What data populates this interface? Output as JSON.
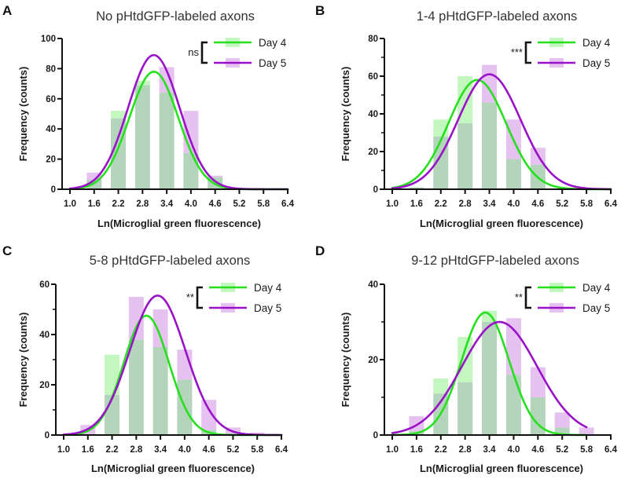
{
  "figure": {
    "x_categories": [
      "1.0",
      "1.6",
      "2.2",
      "2.8",
      "3.4",
      "4.0",
      "4.6",
      "5.2",
      "5.8",
      "6.4"
    ],
    "colors": {
      "day4_line": "#25e01c",
      "day5_line": "#9a12c8",
      "day4_bar": "#c4f6c0",
      "day5_bar": "#e6c2f0",
      "overlap_bar": "#b4d4bc",
      "axis": "#111111"
    }
  },
  "chart_data": [
    {
      "type": "bar",
      "panel": "A",
      "title": "No pHtdGFP-labeled axons",
      "xlabel": "Ln(Microglial green fluorescence)",
      "ylabel": "Frequency (counts)",
      "xlim": [
        1.0,
        6.4
      ],
      "ylim": [
        0,
        100
      ],
      "yticks": [
        0,
        20,
        40,
        60,
        80,
        100
      ],
      "minor_yticks": [],
      "xticks": [
        1.0,
        1.6,
        2.2,
        2.8,
        3.4,
        4.0,
        4.6,
        5.2,
        5.8,
        6.4
      ],
      "categories": [
        1.6,
        2.2,
        2.8,
        3.4,
        4.0,
        4.6
      ],
      "series": [
        {
          "name": "Day 4",
          "values": [
            6,
            52,
            72,
            64,
            24,
            8
          ],
          "fit": {
            "type": "gaussian",
            "peak": 78,
            "mean": 3.08,
            "sd": 0.61,
            "x_range": [
              1.0,
              6.4
            ]
          }
        },
        {
          "name": "Day 5",
          "values": [
            11,
            47,
            69,
            81,
            52,
            9
          ],
          "fit": {
            "type": "gaussian",
            "peak": 89,
            "mean": 3.08,
            "sd": 0.64,
            "x_range": [
              1.0,
              6.4
            ]
          }
        }
      ],
      "significance": "ns",
      "legend": [
        "Day 4",
        "Day 5"
      ],
      "legend_position": "top-right",
      "grid": false
    },
    {
      "type": "bar",
      "panel": "B",
      "title": "1-4 pHtdGFP-labeled axons",
      "xlabel": "Ln(Microglial green fluorescence)",
      "ylabel": "Frequency (counts)",
      "xlim": [
        1.0,
        6.4
      ],
      "ylim": [
        0,
        80
      ],
      "yticks": [
        0,
        20,
        40,
        60,
        80
      ],
      "minor_yticks": [
        10,
        30,
        50,
        70
      ],
      "xticks": [
        1.0,
        1.6,
        2.2,
        2.8,
        3.4,
        4.0,
        4.6,
        5.2,
        5.8,
        6.4
      ],
      "categories": [
        1.6,
        2.2,
        2.8,
        3.4,
        4.0,
        4.6
      ],
      "series": [
        {
          "name": "Day 4",
          "values": [
            1,
            37,
            60,
            46,
            16,
            13
          ],
          "fit": {
            "type": "gaussian",
            "peak": 58,
            "mean": 3.1,
            "sd": 0.71,
            "x_range": [
              1.0,
              6.4
            ]
          }
        },
        {
          "name": "Day 5",
          "values": [
            1,
            28,
            35,
            66,
            37,
            22
          ],
          "fit": {
            "type": "gaussian",
            "peak": 61,
            "mean": 3.4,
            "sd": 0.77,
            "x_range": [
              1.0,
              6.4
            ]
          }
        }
      ],
      "significance": "***",
      "legend": [
        "Day 4",
        "Day 5"
      ],
      "legend_position": "top-right",
      "grid": false
    },
    {
      "type": "bar",
      "panel": "C",
      "title": "5-8 pHtdGFP-labeled axons",
      "xlabel": "Ln(Microglial green fluorescence)",
      "ylabel": "Frequency (counts)",
      "xlim": [
        1.0,
        6.4
      ],
      "ylim": [
        0,
        60
      ],
      "yticks": [
        0,
        20,
        40,
        60
      ],
      "minor_yticks": [
        10,
        30,
        50
      ],
      "xticks": [
        1.0,
        1.6,
        2.2,
        2.8,
        3.4,
        4.0,
        4.6,
        5.2,
        5.8,
        6.4
      ],
      "categories": [
        1.6,
        2.2,
        2.8,
        3.4,
        4.0,
        4.6,
        5.2,
        5.8
      ],
      "series": [
        {
          "name": "Day 4",
          "values": [
            0,
            32,
            38,
            35,
            22,
            2,
            0,
            0
          ],
          "fit": {
            "type": "gaussian",
            "peak": 47.5,
            "mean": 3.05,
            "sd": 0.56,
            "x_range": [
              1.0,
              6.4
            ]
          }
        },
        {
          "name": "Day 5",
          "values": [
            4,
            16,
            55,
            50,
            34,
            14,
            3,
            1
          ],
          "fit": {
            "type": "gaussian",
            "peak": 55.5,
            "mean": 3.33,
            "sd": 0.69,
            "x_range": [
              1.0,
              6.4
            ]
          }
        }
      ],
      "significance": "**",
      "legend": [
        "Day 4",
        "Day 5"
      ],
      "legend_position": "top-right",
      "grid": false
    },
    {
      "type": "bar",
      "panel": "D",
      "title": "9-12 pHtdGFP-labeled axons",
      "xlabel": "Ln(Microglial green fluorescence)",
      "ylabel": "Frequency (counts)",
      "xlim": [
        1.0,
        6.4
      ],
      "ylim": [
        0,
        40
      ],
      "yticks": [
        0,
        20,
        40
      ],
      "minor_yticks": [
        10,
        30
      ],
      "xticks": [
        1.0,
        1.6,
        2.2,
        2.8,
        3.4,
        4.0,
        4.6,
        5.2,
        5.8,
        6.4
      ],
      "categories": [
        1.6,
        2.2,
        2.8,
        3.4,
        4.0,
        4.6,
        5.2,
        5.8
      ],
      "series": [
        {
          "name": "Day 4",
          "values": [
            1,
            15,
            26,
            33,
            16,
            10,
            2,
            0
          ],
          "fit": {
            "type": "gaussian",
            "peak": 32.5,
            "mean": 3.3,
            "sd": 0.59,
            "x_range": [
              1.0,
              5.8
            ]
          }
        },
        {
          "name": "Day 5",
          "values": [
            5,
            11,
            14,
            30,
            31,
            18,
            6,
            2
          ],
          "fit": {
            "type": "gaussian",
            "peak": 30,
            "mean": 3.65,
            "sd": 0.93,
            "x_range": [
              1.0,
              5.8
            ]
          }
        }
      ],
      "significance": "**",
      "legend": [
        "Day 4",
        "Day 5"
      ],
      "legend_position": "top-right",
      "grid": false
    }
  ]
}
